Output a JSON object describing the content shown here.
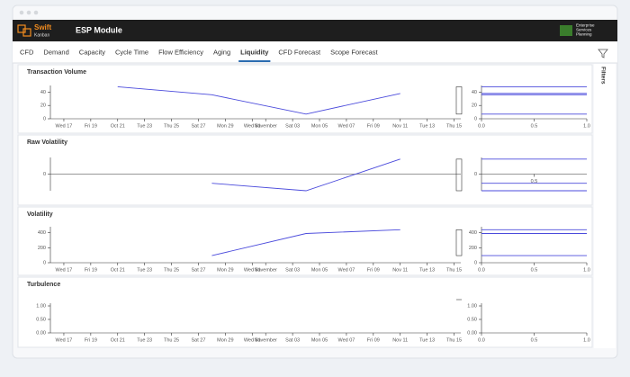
{
  "window": {
    "brand": "Swift",
    "brand_sub": "Kanban",
    "module": "ESP Module",
    "logo_lines": [
      "Enterprise",
      "Services",
      "Planning"
    ]
  },
  "tabs": [
    {
      "label": "CFD"
    },
    {
      "label": "Demand"
    },
    {
      "label": "Capacity"
    },
    {
      "label": "Cycle Time"
    },
    {
      "label": "Flow Efficiency"
    },
    {
      "label": "Aging"
    },
    {
      "label": "Liquidity",
      "active": true
    },
    {
      "label": "CFD Forecast"
    },
    {
      "label": "Scope Forecast"
    }
  ],
  "sidebar": {
    "label": "Filters"
  },
  "chart_data": [
    {
      "type": "line",
      "title": "Transaction Volume",
      "x": [
        21,
        28,
        35,
        42
      ],
      "series": [
        {
          "color": "#4b4bdc",
          "values": [
            48,
            36,
            7,
            38
          ]
        }
      ],
      "xlim": [
        16,
        46.5
      ],
      "xticks": [
        {
          "value": 17,
          "label": "Wed 17"
        },
        {
          "value": 19,
          "label": "Fri 19"
        },
        {
          "value": 21,
          "label": "Oct 21"
        },
        {
          "value": 23,
          "label": "Tue 23"
        },
        {
          "value": 25,
          "label": "Thu 25"
        },
        {
          "value": 27,
          "label": "Sat 27"
        },
        {
          "value": 29,
          "label": "Mon 29"
        },
        {
          "value": 31,
          "label": "Wed 31"
        },
        {
          "value": 32,
          "label": "November"
        },
        {
          "value": 34,
          "label": "Sat 03"
        },
        {
          "value": 36,
          "label": "Mon 05"
        },
        {
          "value": 38,
          "label": "Wed 07"
        },
        {
          "value": 40,
          "label": "Fri 09"
        },
        {
          "value": 42,
          "label": "Nov 11"
        },
        {
          "value": 44,
          "label": "Tue 13"
        },
        {
          "value": 46,
          "label": "Thu 15"
        }
      ],
      "ylim": [
        0,
        50
      ],
      "yticks": [
        0,
        20,
        40
      ],
      "dist_xlim": [
        0,
        1
      ],
      "dist_xticks": [
        {
          "value": 0,
          "label": "0.0"
        },
        {
          "value": 0.5,
          "label": "0.5"
        },
        {
          "value": 1,
          "label": "1.0"
        }
      ]
    },
    {
      "type": "line",
      "title": "Raw Volatility",
      "x": [
        28,
        35,
        42
      ],
      "series": [
        {
          "color": "#4b4bdc",
          "values": [
            -11,
            -20,
            18
          ]
        }
      ],
      "xlim": [
        16,
        46.5
      ],
      "ylim": [
        -20,
        20
      ],
      "yticks": [
        0
      ],
      "dist_xlim": [
        0,
        1
      ],
      "dist_xticks": [
        {
          "value": 0.5,
          "label": "0.5"
        }
      ]
    },
    {
      "type": "line",
      "title": "Volatility",
      "x": [
        28,
        35,
        42
      ],
      "series": [
        {
          "color": "#4b4bdc",
          "values": [
            95,
            390,
            440
          ]
        }
      ],
      "xlim": [
        16,
        46.5
      ],
      "xticks": [
        {
          "value": 17,
          "label": "Wed 17"
        },
        {
          "value": 19,
          "label": "Fri 19"
        },
        {
          "value": 21,
          "label": "Oct 21"
        },
        {
          "value": 23,
          "label": "Tue 23"
        },
        {
          "value": 25,
          "label": "Thu 25"
        },
        {
          "value": 27,
          "label": "Sat 27"
        },
        {
          "value": 29,
          "label": "Mon 29"
        },
        {
          "value": 31,
          "label": "Wed 31"
        },
        {
          "value": 32,
          "label": "November"
        },
        {
          "value": 34,
          "label": "Sat 03"
        },
        {
          "value": 36,
          "label": "Mon 05"
        },
        {
          "value": 38,
          "label": "Wed 07"
        },
        {
          "value": 40,
          "label": "Fri 09"
        },
        {
          "value": 42,
          "label": "Nov 11"
        },
        {
          "value": 44,
          "label": "Tue 13"
        },
        {
          "value": 46,
          "label": "Thu 15"
        }
      ],
      "ylim": [
        0,
        480
      ],
      "yticks": [
        0,
        200,
        400
      ],
      "dist_xlim": [
        0,
        1
      ],
      "dist_xticks": [
        {
          "value": 0,
          "label": "0.0"
        },
        {
          "value": 0.5,
          "label": "0.5"
        },
        {
          "value": 1,
          "label": "1.0"
        }
      ]
    },
    {
      "type": "line",
      "title": "Turbulence",
      "x": [],
      "series": [
        {
          "color": "#4b4bdc",
          "values": []
        }
      ],
      "xlim": [
        16,
        46.5
      ],
      "xticks": [
        {
          "value": 17,
          "label": "Wed 17"
        },
        {
          "value": 19,
          "label": "Fri 19"
        },
        {
          "value": 21,
          "label": "Oct 21"
        },
        {
          "value": 23,
          "label": "Tue 23"
        },
        {
          "value": 25,
          "label": "Thu 25"
        },
        {
          "value": 27,
          "label": "Sat 27"
        },
        {
          "value": 29,
          "label": "Mon 29"
        },
        {
          "value": 31,
          "label": "Wed 31"
        },
        {
          "value": 32,
          "label": "November"
        },
        {
          "value": 34,
          "label": "Sat 03"
        },
        {
          "value": 36,
          "label": "Mon 05"
        },
        {
          "value": 38,
          "label": "Wed 07"
        },
        {
          "value": 40,
          "label": "Fri 09"
        },
        {
          "value": 42,
          "label": "Nov 11"
        },
        {
          "value": 44,
          "label": "Tue 13"
        },
        {
          "value": 46,
          "label": "Thu 15"
        }
      ],
      "ylim": [
        0,
        1.1
      ],
      "yticks": [
        {
          "value": 0,
          "label": "0.00"
        },
        {
          "value": 0.5,
          "label": "0.50"
        },
        {
          "value": 1,
          "label": "1.00"
        }
      ],
      "dist_xlim": [
        0,
        1
      ],
      "dist_xticks": [
        {
          "value": 0,
          "label": "0.0"
        },
        {
          "value": 0.5,
          "label": "0.5"
        },
        {
          "value": 1,
          "label": "1.0"
        }
      ]
    }
  ]
}
